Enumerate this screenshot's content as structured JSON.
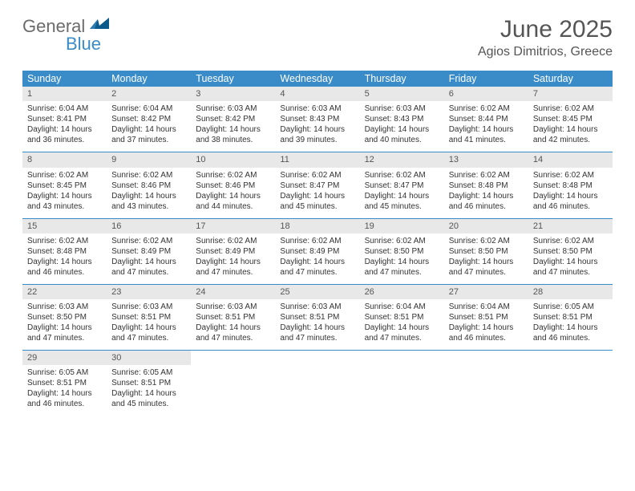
{
  "logo": {
    "text1": "General",
    "text2": "Blue"
  },
  "title": "June 2025",
  "location": "Agios Dimitrios, Greece",
  "headers": [
    "Sunday",
    "Monday",
    "Tuesday",
    "Wednesday",
    "Thursday",
    "Friday",
    "Saturday"
  ],
  "colors": {
    "header_bg": "#3a8cc9",
    "header_fg": "#ffffff",
    "daynum_bg": "#e8e8e8",
    "border": "#3a8cc9",
    "text": "#333333",
    "title_color": "#555555",
    "logo_gray": "#6b6b6b",
    "logo_blue": "#3a8cc9"
  },
  "weeks": [
    [
      {
        "n": "1",
        "sr": "Sunrise: 6:04 AM",
        "ss": "Sunset: 8:41 PM",
        "dl": "Daylight: 14 hours and 36 minutes."
      },
      {
        "n": "2",
        "sr": "Sunrise: 6:04 AM",
        "ss": "Sunset: 8:42 PM",
        "dl": "Daylight: 14 hours and 37 minutes."
      },
      {
        "n": "3",
        "sr": "Sunrise: 6:03 AM",
        "ss": "Sunset: 8:42 PM",
        "dl": "Daylight: 14 hours and 38 minutes."
      },
      {
        "n": "4",
        "sr": "Sunrise: 6:03 AM",
        "ss": "Sunset: 8:43 PM",
        "dl": "Daylight: 14 hours and 39 minutes."
      },
      {
        "n": "5",
        "sr": "Sunrise: 6:03 AM",
        "ss": "Sunset: 8:43 PM",
        "dl": "Daylight: 14 hours and 40 minutes."
      },
      {
        "n": "6",
        "sr": "Sunrise: 6:02 AM",
        "ss": "Sunset: 8:44 PM",
        "dl": "Daylight: 14 hours and 41 minutes."
      },
      {
        "n": "7",
        "sr": "Sunrise: 6:02 AM",
        "ss": "Sunset: 8:45 PM",
        "dl": "Daylight: 14 hours and 42 minutes."
      }
    ],
    [
      {
        "n": "8",
        "sr": "Sunrise: 6:02 AM",
        "ss": "Sunset: 8:45 PM",
        "dl": "Daylight: 14 hours and 43 minutes."
      },
      {
        "n": "9",
        "sr": "Sunrise: 6:02 AM",
        "ss": "Sunset: 8:46 PM",
        "dl": "Daylight: 14 hours and 43 minutes."
      },
      {
        "n": "10",
        "sr": "Sunrise: 6:02 AM",
        "ss": "Sunset: 8:46 PM",
        "dl": "Daylight: 14 hours and 44 minutes."
      },
      {
        "n": "11",
        "sr": "Sunrise: 6:02 AM",
        "ss": "Sunset: 8:47 PM",
        "dl": "Daylight: 14 hours and 45 minutes."
      },
      {
        "n": "12",
        "sr": "Sunrise: 6:02 AM",
        "ss": "Sunset: 8:47 PM",
        "dl": "Daylight: 14 hours and 45 minutes."
      },
      {
        "n": "13",
        "sr": "Sunrise: 6:02 AM",
        "ss": "Sunset: 8:48 PM",
        "dl": "Daylight: 14 hours and 46 minutes."
      },
      {
        "n": "14",
        "sr": "Sunrise: 6:02 AM",
        "ss": "Sunset: 8:48 PM",
        "dl": "Daylight: 14 hours and 46 minutes."
      }
    ],
    [
      {
        "n": "15",
        "sr": "Sunrise: 6:02 AM",
        "ss": "Sunset: 8:48 PM",
        "dl": "Daylight: 14 hours and 46 minutes."
      },
      {
        "n": "16",
        "sr": "Sunrise: 6:02 AM",
        "ss": "Sunset: 8:49 PM",
        "dl": "Daylight: 14 hours and 47 minutes."
      },
      {
        "n": "17",
        "sr": "Sunrise: 6:02 AM",
        "ss": "Sunset: 8:49 PM",
        "dl": "Daylight: 14 hours and 47 minutes."
      },
      {
        "n": "18",
        "sr": "Sunrise: 6:02 AM",
        "ss": "Sunset: 8:49 PM",
        "dl": "Daylight: 14 hours and 47 minutes."
      },
      {
        "n": "19",
        "sr": "Sunrise: 6:02 AM",
        "ss": "Sunset: 8:50 PM",
        "dl": "Daylight: 14 hours and 47 minutes."
      },
      {
        "n": "20",
        "sr": "Sunrise: 6:02 AM",
        "ss": "Sunset: 8:50 PM",
        "dl": "Daylight: 14 hours and 47 minutes."
      },
      {
        "n": "21",
        "sr": "Sunrise: 6:02 AM",
        "ss": "Sunset: 8:50 PM",
        "dl": "Daylight: 14 hours and 47 minutes."
      }
    ],
    [
      {
        "n": "22",
        "sr": "Sunrise: 6:03 AM",
        "ss": "Sunset: 8:50 PM",
        "dl": "Daylight: 14 hours and 47 minutes."
      },
      {
        "n": "23",
        "sr": "Sunrise: 6:03 AM",
        "ss": "Sunset: 8:51 PM",
        "dl": "Daylight: 14 hours and 47 minutes."
      },
      {
        "n": "24",
        "sr": "Sunrise: 6:03 AM",
        "ss": "Sunset: 8:51 PM",
        "dl": "Daylight: 14 hours and 47 minutes."
      },
      {
        "n": "25",
        "sr": "Sunrise: 6:03 AM",
        "ss": "Sunset: 8:51 PM",
        "dl": "Daylight: 14 hours and 47 minutes."
      },
      {
        "n": "26",
        "sr": "Sunrise: 6:04 AM",
        "ss": "Sunset: 8:51 PM",
        "dl": "Daylight: 14 hours and 47 minutes."
      },
      {
        "n": "27",
        "sr": "Sunrise: 6:04 AM",
        "ss": "Sunset: 8:51 PM",
        "dl": "Daylight: 14 hours and 46 minutes."
      },
      {
        "n": "28",
        "sr": "Sunrise: 6:05 AM",
        "ss": "Sunset: 8:51 PM",
        "dl": "Daylight: 14 hours and 46 minutes."
      }
    ],
    [
      {
        "n": "29",
        "sr": "Sunrise: 6:05 AM",
        "ss": "Sunset: 8:51 PM",
        "dl": "Daylight: 14 hours and 46 minutes."
      },
      {
        "n": "30",
        "sr": "Sunrise: 6:05 AM",
        "ss": "Sunset: 8:51 PM",
        "dl": "Daylight: 14 hours and 45 minutes."
      },
      {
        "empty": true
      },
      {
        "empty": true
      },
      {
        "empty": true
      },
      {
        "empty": true
      },
      {
        "empty": true
      }
    ]
  ]
}
